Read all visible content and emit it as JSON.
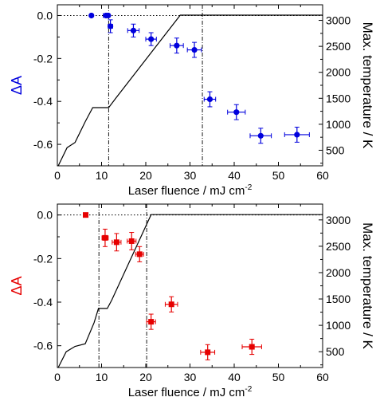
{
  "chart_data": [
    {
      "type": "scatter",
      "xlabel": "Laser fluence / mJ cm",
      "xlabel_sup": "-2",
      "ylabel": "ΔA",
      "ylabel_color": "#0000dd",
      "y2label": "Max. temperature / K",
      "xlim": [
        0,
        60
      ],
      "ylim": [
        -0.7,
        0.05
      ],
      "y2lim": [
        200,
        3300
      ],
      "x_ticks": [
        "0",
        "10",
        "20",
        "30",
        "40",
        "50",
        "60"
      ],
      "y_ticks": [
        "0.0",
        "-0.2",
        "-0.4",
        "-0.6"
      ],
      "y2_ticks": [
        "500",
        "1000",
        "1500",
        "2000",
        "2500",
        "3000"
      ],
      "grid": false,
      "series": [
        {
          "marker": "circle",
          "color": "#0000dd",
          "points": [
            {
              "x": 7.7,
              "y": 0.0,
              "xerr": 0,
              "yerr": 0
            },
            {
              "x": 11.0,
              "y": 0.0,
              "xerr": 0.6,
              "yerr": 0
            },
            {
              "x": 11.5,
              "y": 0.0,
              "xerr": 0,
              "yerr": 0
            },
            {
              "x": 12.0,
              "y": -0.05,
              "xerr": 0.5,
              "yerr": 0.03
            },
            {
              "x": 17.2,
              "y": -0.07,
              "xerr": 1.3,
              "yerr": 0.03
            },
            {
              "x": 21.2,
              "y": -0.11,
              "xerr": 1.2,
              "yerr": 0.03
            },
            {
              "x": 27.0,
              "y": -0.14,
              "xerr": 1.5,
              "yerr": 0.035
            },
            {
              "x": 31.0,
              "y": -0.16,
              "xerr": 1.6,
              "yerr": 0.035
            },
            {
              "x": 34.5,
              "y": -0.39,
              "xerr": 1.3,
              "yerr": 0.035
            },
            {
              "x": 40.5,
              "y": -0.45,
              "xerr": 2.0,
              "yerr": 0.035
            },
            {
              "x": 46.0,
              "y": -0.56,
              "xerr": 2.4,
              "yerr": 0.035
            },
            {
              "x": 54.2,
              "y": -0.555,
              "xerr": 2.8,
              "yerr": 0.035
            }
          ]
        }
      ],
      "temperature_curve": [
        [
          0.2,
          200
        ],
        [
          2.2,
          550
        ],
        [
          4,
          650
        ],
        [
          6.3,
          1050
        ],
        [
          8,
          1320
        ],
        [
          10.2,
          1320
        ],
        [
          11.6,
          1320
        ],
        [
          13.2,
          1500
        ],
        [
          27.8,
          3100
        ],
        [
          60,
          3100
        ]
      ],
      "reference_lines": {
        "dashdot_x": [
          11.6,
          32.8
        ],
        "dotted_y": 0.0
      }
    },
    {
      "type": "scatter",
      "xlabel": "Laser fluence / mJ cm",
      "xlabel_sup": "-2",
      "ylabel": "ΔA",
      "ylabel_color": "#e60000",
      "y2label": "Max. temperature / K",
      "xlim": [
        0,
        60
      ],
      "ylim": [
        -0.7,
        0.05
      ],
      "y2lim": [
        200,
        3300
      ],
      "x_ticks": [
        "0",
        "10",
        "20",
        "30",
        "40",
        "50",
        "60"
      ],
      "y_ticks": [
        "0.0",
        "-0.2",
        "-0.4",
        "-0.6"
      ],
      "y2_ticks": [
        "500",
        "1000",
        "1500",
        "2000",
        "2500",
        "3000"
      ],
      "grid": false,
      "series": [
        {
          "marker": "square",
          "color": "#e60000",
          "points": [
            {
              "x": 6.4,
              "y": 0.0,
              "xerr": 0,
              "yerr": 0
            },
            {
              "x": 10.8,
              "y": -0.105,
              "xerr": 0.7,
              "yerr": 0.04
            },
            {
              "x": 13.4,
              "y": -0.125,
              "xerr": 1.0,
              "yerr": 0.04
            },
            {
              "x": 16.8,
              "y": -0.12,
              "xerr": 1.0,
              "yerr": 0.04
            },
            {
              "x": 18.6,
              "y": -0.18,
              "xerr": 0.9,
              "yerr": 0.035
            },
            {
              "x": 21.2,
              "y": -0.49,
              "xerr": 1.0,
              "yerr": 0.035
            },
            {
              "x": 25.8,
              "y": -0.41,
              "xerr": 1.4,
              "yerr": 0.035
            },
            {
              "x": 34.0,
              "y": -0.63,
              "xerr": 1.6,
              "yerr": 0.035
            },
            {
              "x": 44.0,
              "y": -0.605,
              "xerr": 2.2,
              "yerr": 0.035
            }
          ]
        }
      ],
      "temperature_curve": [
        [
          0.2,
          200
        ],
        [
          2,
          500
        ],
        [
          4,
          600
        ],
        [
          6.3,
          650
        ],
        [
          8.3,
          1050
        ],
        [
          9.3,
          1320
        ],
        [
          10.5,
          1320
        ],
        [
          11.3,
          1320
        ],
        [
          12.3,
          1480
        ],
        [
          21.2,
          3100
        ],
        [
          60,
          3100
        ]
      ],
      "reference_lines": {
        "dashdot_x": [
          9.4,
          20.2
        ],
        "dotted_y": 0.0
      }
    }
  ]
}
